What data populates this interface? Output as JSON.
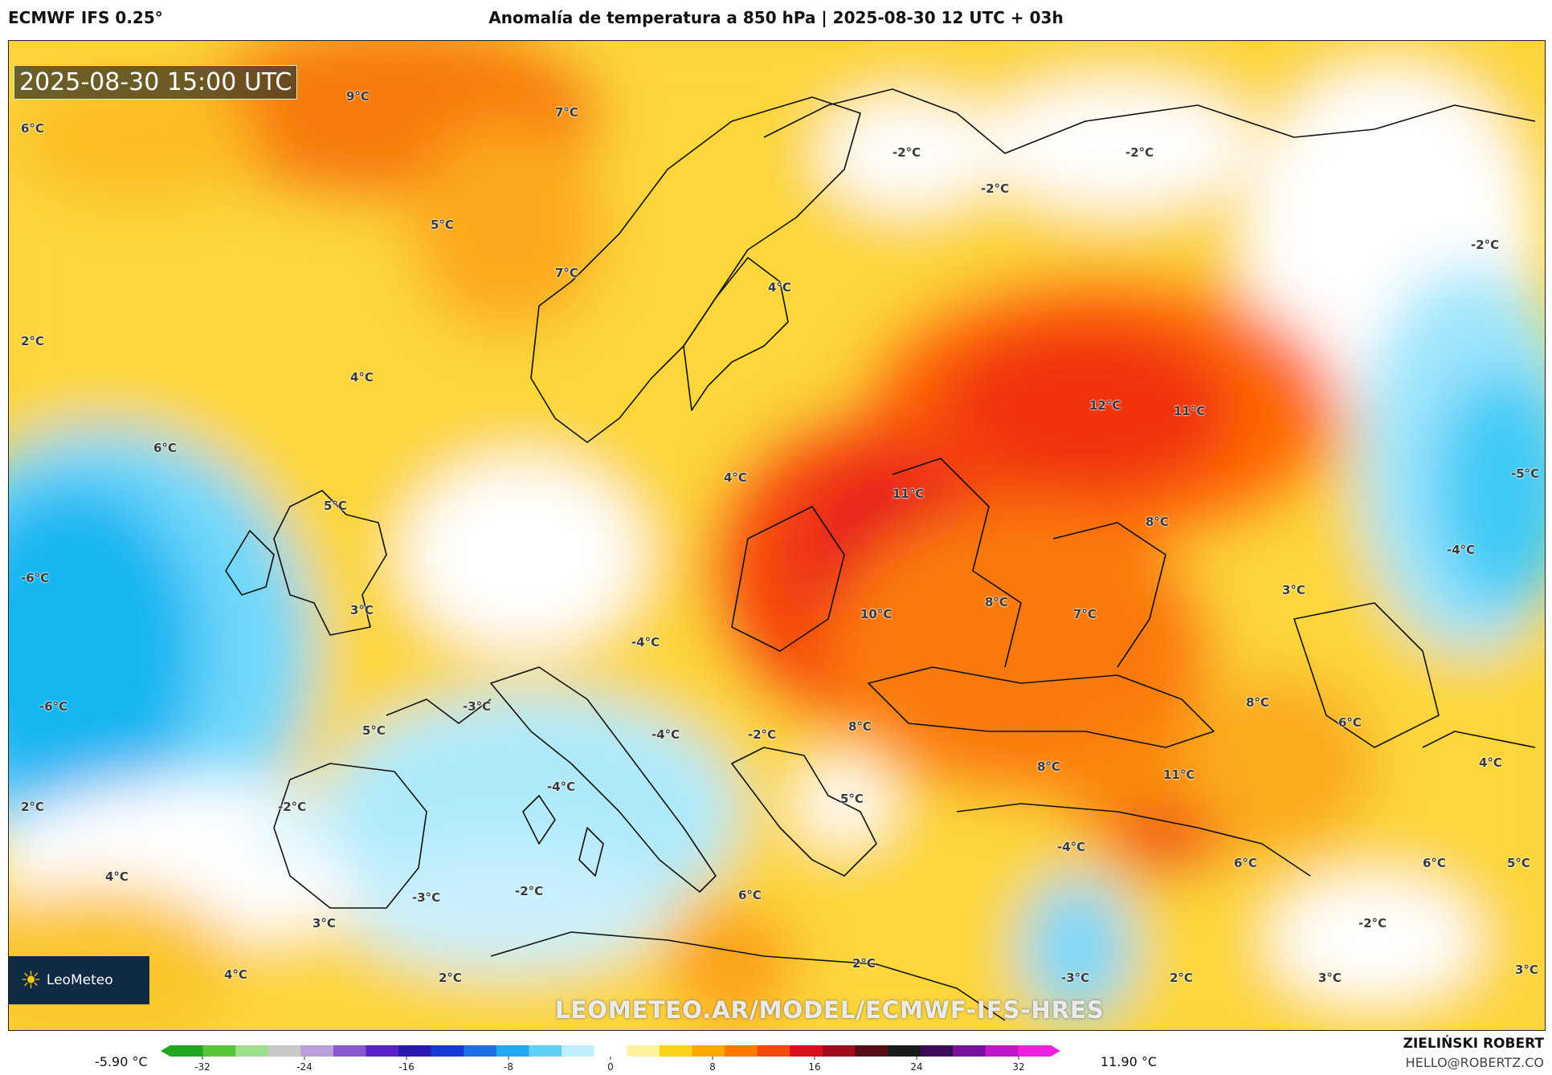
{
  "header": {
    "model": "ECMWF IFS 0.25°",
    "title": "Anomalía de temperatura a 850 hPa | 2025-08-30 12 UTC + 03h"
  },
  "map": {
    "valid_time": "2025-08-30 15:00 UTC",
    "labels": [
      {
        "text": "9°C"
      },
      {
        "text": "7°C"
      },
      {
        "text": "6°C"
      },
      {
        "text": "-2°C"
      },
      {
        "text": "-2°C"
      },
      {
        "text": "-2°C"
      },
      {
        "text": "5°C"
      },
      {
        "text": "-2°C"
      },
      {
        "text": "7°C"
      },
      {
        "text": "4°C"
      },
      {
        "text": "2°C"
      },
      {
        "text": "4°C"
      },
      {
        "text": "12°C"
      },
      {
        "text": "11°C"
      },
      {
        "text": "6°C"
      },
      {
        "text": "4°C"
      },
      {
        "text": "11°C"
      },
      {
        "text": "5°C"
      },
      {
        "text": "-5°C"
      },
      {
        "text": "8°C"
      },
      {
        "text": "-4°C"
      },
      {
        "text": "-6°C"
      },
      {
        "text": "3°C"
      },
      {
        "text": "3°C"
      },
      {
        "text": "10°C"
      },
      {
        "text": "8°C"
      },
      {
        "text": "7°C"
      },
      {
        "text": "-4°C"
      },
      {
        "text": "-3°C"
      },
      {
        "text": "-6°C"
      },
      {
        "text": "8°C"
      },
      {
        "text": "8°C"
      },
      {
        "text": "5°C"
      },
      {
        "text": "-4°C"
      },
      {
        "text": "-2°C"
      },
      {
        "text": "6°C"
      },
      {
        "text": "4°C"
      },
      {
        "text": "8°C"
      },
      {
        "text": "11°C"
      },
      {
        "text": "-4°C"
      },
      {
        "text": "5°C"
      },
      {
        "text": "2°C"
      },
      {
        "text": "-2°C"
      },
      {
        "text": "-4°C"
      },
      {
        "text": "6°C"
      },
      {
        "text": "6°C"
      },
      {
        "text": "5°C"
      },
      {
        "text": "4°C"
      },
      {
        "text": "-3°C"
      },
      {
        "text": "-2°C"
      },
      {
        "text": "6°C"
      },
      {
        "text": "3°C"
      },
      {
        "text": "-2°C"
      },
      {
        "text": "4°C"
      },
      {
        "text": "4°C"
      },
      {
        "text": "2°C"
      },
      {
        "text": "2°C"
      },
      {
        "text": "-3°C"
      },
      {
        "text": "2°C"
      },
      {
        "text": "3°C"
      },
      {
        "text": "3°C"
      }
    ]
  },
  "branding": {
    "logo_text": "LeoMeteo",
    "watermark": "LEOMETEO.AR/MODEL/ECMWF-IFS-HRES",
    "author": "ZIELIŃSKI ROBERT",
    "email": "HELLO@ROBERTZ.CO"
  },
  "legend": {
    "min_value": "-5.90 °C",
    "max_value": "11.90 °C",
    "ticks": [
      "-32",
      "-24",
      "-16",
      "-8",
      "0",
      "8",
      "16",
      "24",
      "32"
    ],
    "colors": [
      "#1fa81f",
      "#55c83a",
      "#9ee08a",
      "#c9c9c9",
      "#b9a0d8",
      "#8a58d0",
      "#5a20c8",
      "#2a1ab0",
      "#1838d8",
      "#1e70e8",
      "#22a8f0",
      "#5fd0f8",
      "#bfeefc",
      "#ffffff",
      "#fff3a0",
      "#ffd21c",
      "#ffa800",
      "#ff7a00",
      "#f24a0a",
      "#d81020",
      "#a00c1c",
      "#5a0a14",
      "#1a1a1a",
      "#3c0a5a",
      "#7a10a0",
      "#c018c8",
      "#f020e0"
    ]
  }
}
